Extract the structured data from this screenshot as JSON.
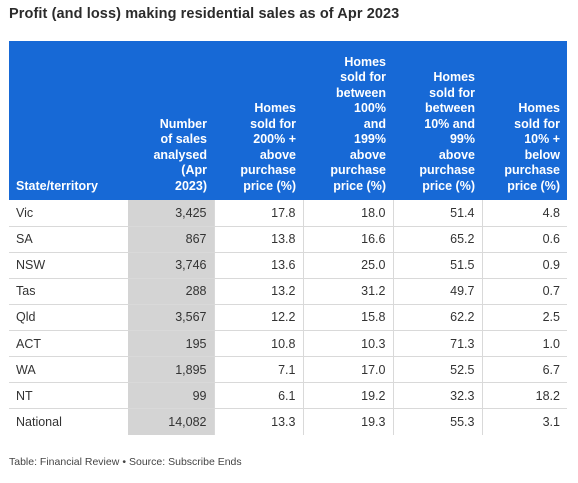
{
  "title": "Profit (and loss) making residential sales as of Apr 2023",
  "footer": {
    "source_label": "Table: Financial Review",
    "bullet": "•",
    "source_text": "Source: Subscribe Ends"
  },
  "colors": {
    "header_bg": "#1769d6",
    "shaded_column": "#d4d4d4"
  },
  "chart_data": {
    "type": "table",
    "columns": [
      "State/territory",
      "Number of sales analysed (Apr 2023)",
      "Homes sold for 200% + above purchase price (%)",
      "Homes sold for between 100% and 199% above purchase price (%)",
      "Homes sold for between 10% and 99% above purchase price (%)",
      "Homes sold for 10% + below purchase price (%)"
    ],
    "header_lines": [
      [
        "State/territory"
      ],
      [
        "Number",
        "of sales",
        "analysed",
        "(Apr",
        "2023)"
      ],
      [
        "Homes",
        "sold for",
        "200% +",
        "above",
        "purchase",
        "price (%)"
      ],
      [
        "Homes",
        "sold for",
        "between",
        "100%",
        "and",
        "199%",
        "above",
        "purchase",
        "price (%)"
      ],
      [
        "Homes",
        "sold for",
        "between",
        "10% and",
        "99%",
        "above",
        "purchase",
        "price (%)"
      ],
      [
        "Homes",
        "sold for",
        "10% +",
        "below",
        "purchase",
        "price (%)"
      ]
    ],
    "rows": [
      [
        "Vic",
        "3,425",
        "17.8",
        "18.0",
        "51.4",
        "4.8"
      ],
      [
        "SA",
        "867",
        "13.8",
        "16.6",
        "65.2",
        "0.6"
      ],
      [
        "NSW",
        "3,746",
        "13.6",
        "25.0",
        "51.5",
        "0.9"
      ],
      [
        "Tas",
        "288",
        "13.2",
        "31.2",
        "49.7",
        "0.7"
      ],
      [
        "Qld",
        "3,567",
        "12.2",
        "15.8",
        "62.2",
        "2.5"
      ],
      [
        "ACT",
        "195",
        "10.8",
        "10.3",
        "71.3",
        "1.0"
      ],
      [
        "WA",
        "1,895",
        "7.1",
        "17.0",
        "52.5",
        "6.7"
      ],
      [
        "NT",
        "99",
        "6.1",
        "19.2",
        "32.3",
        "18.2"
      ],
      [
        "National",
        "14,082",
        "13.3",
        "19.3",
        "55.3",
        "3.1"
      ]
    ]
  }
}
